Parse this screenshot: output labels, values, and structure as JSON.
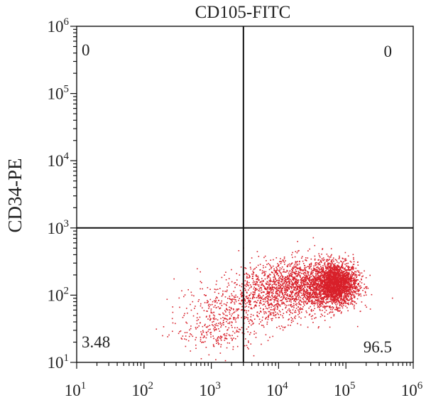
{
  "chart_data": {
    "type": "scatter",
    "title": "CD105-FITC",
    "xlabel": "",
    "ylabel": "CD34-PE",
    "xscale": "log",
    "yscale": "log",
    "xlim": [
      10,
      1000000
    ],
    "ylim": [
      10,
      1000000
    ],
    "x_tick_labels": [
      {
        "base": "10",
        "exp": "1"
      },
      {
        "base": "10",
        "exp": "2"
      },
      {
        "base": "10",
        "exp": "3"
      },
      {
        "base": "10",
        "exp": "4"
      },
      {
        "base": "10",
        "exp": "5"
      },
      {
        "base": "10",
        "exp": "6"
      }
    ],
    "y_tick_labels": [
      {
        "base": "10",
        "exp": "1"
      },
      {
        "base": "10",
        "exp": "2"
      },
      {
        "base": "10",
        "exp": "3"
      },
      {
        "base": "10",
        "exp": "4"
      },
      {
        "base": "10",
        "exp": "5"
      },
      {
        "base": "10",
        "exp": "6"
      }
    ],
    "gates": {
      "x": 3000,
      "y": 1000
    },
    "quadrant_labels": {
      "upper_left": "0",
      "upper_right": "0",
      "lower_left": "3.48",
      "lower_right": "96.5"
    },
    "point_color": "#d8202a",
    "populations": [
      {
        "cx": 70000,
        "cy": 150,
        "spread_x_decades": 0.16,
        "spread_y_decades": 0.16,
        "n": 2200
      },
      {
        "cx": 25000,
        "cy": 140,
        "spread_x_decades": 0.3,
        "spread_y_decades": 0.2,
        "n": 1300
      },
      {
        "cx": 7000,
        "cy": 110,
        "spread_x_decades": 0.3,
        "spread_y_decades": 0.22,
        "n": 650
      },
      {
        "cx": 1500,
        "cy": 60,
        "spread_x_decades": 0.35,
        "spread_y_decades": 0.22,
        "n": 320
      },
      {
        "cx": 1200,
        "cy": 25,
        "spread_x_decades": 0.3,
        "spread_y_decades": 0.12,
        "n": 140
      }
    ],
    "grid": false,
    "legend": "none"
  }
}
